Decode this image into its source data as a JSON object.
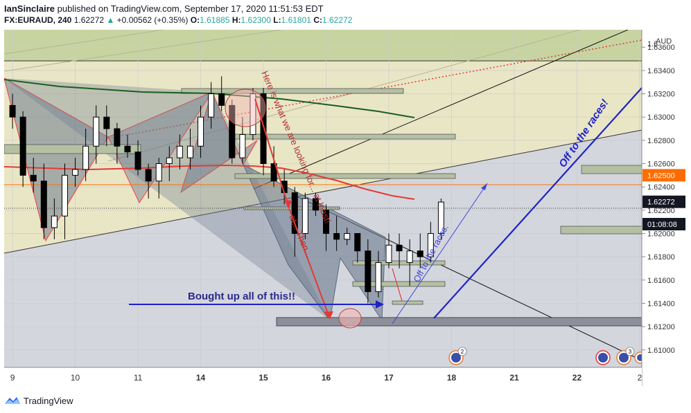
{
  "header": {
    "publisher": "IanSinclaire",
    "published_text": "published on TradingView.com, September 17, 2020 11:51:53 EDT",
    "symbol": "FX:EURAUD, 240",
    "last": "1.62272",
    "change": "+0.00562 (+0.35%)",
    "o_label": "O:",
    "o": "1.61885",
    "h_label": "H:",
    "h": "1.62300",
    "l_label": "L:",
    "l": "1.61801",
    "c_label": "C:",
    "c": "1.62272"
  },
  "footer": {
    "brand": "TradingView"
  },
  "chart_data": {
    "type": "candlestick",
    "currency_label": "AUD",
    "y_ticks": [
      "1.61000",
      "1.61200",
      "1.61400",
      "1.61600",
      "1.61800",
      "1.62000",
      "1.62200",
      "1.62400",
      "1.62600",
      "1.62800",
      "1.63000",
      "1.63200",
      "1.63400",
      "1.63600"
    ],
    "y_tick_values": [
      1.61,
      1.612,
      1.614,
      1.616,
      1.618,
      1.62,
      1.622,
      1.624,
      1.626,
      1.628,
      1.63,
      1.632,
      1.634,
      1.636
    ],
    "top_tick_partial": "1.6",
    "ylim": [
      1.6085,
      1.6375
    ],
    "x_ticks": [
      {
        "label": "9",
        "bold": false,
        "x": 0
      },
      {
        "label": "10",
        "bold": false,
        "x": 6
      },
      {
        "label": "11",
        "bold": false,
        "x": 12
      },
      {
        "label": "14",
        "bold": true,
        "x": 18
      },
      {
        "label": "15",
        "bold": true,
        "x": 24
      },
      {
        "label": "16",
        "bold": true,
        "x": 30
      },
      {
        "label": "17",
        "bold": true,
        "x": 36
      },
      {
        "label": "18",
        "bold": true,
        "x": 42
      },
      {
        "label": "21",
        "bold": true,
        "x": 48
      },
      {
        "label": "22",
        "bold": true,
        "x": 54
      },
      {
        "label": "2",
        "bold": false,
        "x": 60
      }
    ],
    "xlim": [
      -0.8,
      60.2
    ],
    "price_marks": [
      {
        "value": 1.625,
        "label": "1.62500",
        "bg": "#ff6d00",
        "fg": "#ffffff"
      },
      {
        "value": 1.62272,
        "label": "1.62272",
        "bg": "#131722",
        "fg": "#ffffff"
      },
      {
        "value": 1.6208,
        "label": "01:08:08",
        "bg": "#131722",
        "fg": "#ffffff"
      }
    ],
    "candles": [
      [
        0,
        1.631,
        1.632,
        1.629,
        1.63
      ],
      [
        1,
        1.63,
        1.6305,
        1.624,
        1.625
      ],
      [
        2,
        1.625,
        1.6265,
        1.6235,
        1.6245
      ],
      [
        3,
        1.6245,
        1.626,
        1.6195,
        1.6205
      ],
      [
        4,
        1.6205,
        1.623,
        1.6195,
        1.6215
      ],
      [
        5,
        1.6215,
        1.626,
        1.6195,
        1.625
      ],
      [
        6,
        1.625,
        1.6265,
        1.624,
        1.6255
      ],
      [
        7,
        1.6255,
        1.629,
        1.6245,
        1.6275
      ],
      [
        8,
        1.6275,
        1.631,
        1.626,
        1.63
      ],
      [
        9,
        1.63,
        1.631,
        1.6275,
        1.629
      ],
      [
        10,
        1.629,
        1.6295,
        1.626,
        1.6275
      ],
      [
        11,
        1.6275,
        1.6285,
        1.6265,
        1.627
      ],
      [
        12,
        1.627,
        1.628,
        1.625,
        1.6255
      ],
      [
        13,
        1.6255,
        1.626,
        1.623,
        1.6245
      ],
      [
        14,
        1.6245,
        1.6265,
        1.623,
        1.626
      ],
      [
        15,
        1.626,
        1.6275,
        1.6245,
        1.6265
      ],
      [
        16,
        1.6265,
        1.6285,
        1.6255,
        1.6275
      ],
      [
        17,
        1.6265,
        1.629,
        1.6255,
        1.6275
      ],
      [
        18,
        1.6275,
        1.631,
        1.6265,
        1.63
      ],
      [
        19,
        1.63,
        1.633,
        1.629,
        1.632
      ],
      [
        20,
        1.632,
        1.6335,
        1.6305,
        1.631
      ],
      [
        21,
        1.631,
        1.6315,
        1.626,
        1.6265
      ],
      [
        22,
        1.6265,
        1.63,
        1.626,
        1.6285
      ],
      [
        23,
        1.6285,
        1.6325,
        1.628,
        1.632
      ],
      [
        24,
        1.632,
        1.6325,
        1.625,
        1.626
      ],
      [
        25,
        1.626,
        1.6275,
        1.624,
        1.6245
      ],
      [
        26,
        1.6245,
        1.6255,
        1.6225,
        1.6235
      ],
      [
        27,
        1.6235,
        1.624,
        1.618,
        1.62
      ],
      [
        28,
        1.62,
        1.6235,
        1.6195,
        1.623
      ],
      [
        29,
        1.623,
        1.6235,
        1.6215,
        1.622
      ],
      [
        30,
        1.622,
        1.6225,
        1.6185,
        1.62
      ],
      [
        31,
        1.62,
        1.6215,
        1.6185,
        1.6195
      ],
      [
        32,
        1.6195,
        1.6205,
        1.619,
        1.62
      ],
      [
        33,
        1.62,
        1.62,
        1.6175,
        1.6185
      ],
      [
        34,
        1.6185,
        1.6195,
        1.614,
        1.615
      ],
      [
        35,
        1.615,
        1.6185,
        1.6145,
        1.6175
      ],
      [
        36,
        1.6175,
        1.62,
        1.617,
        1.619
      ],
      [
        37,
        1.619,
        1.62,
        1.617,
        1.6185
      ],
      [
        38,
        1.6175,
        1.6195,
        1.6155,
        1.6185
      ],
      [
        39,
        1.6185,
        1.62,
        1.617,
        1.618
      ],
      [
        40,
        1.618,
        1.621,
        1.6175,
        1.62
      ],
      [
        41,
        1.62,
        1.623,
        1.6195,
        1.6227
      ]
    ]
  },
  "annotations": {
    "bought_label": "Bought up all of this!!",
    "races_big": "Off to the races!",
    "races_small": "Off to the races.",
    "red_note": "Here is what we are looking for... at least!",
    "red_note2": "at... Then...",
    "badge_2": "2",
    "badge_3": "3"
  },
  "colors": {
    "up": "#ffffff",
    "down": "#000000",
    "ma_green": "#1b5e20",
    "ma_red": "#e53935",
    "blue": "#1e22c8",
    "orange": "#ff6d00"
  }
}
